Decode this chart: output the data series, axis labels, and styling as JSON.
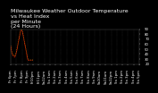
{
  "title": "Milwaukee Weather Outdoor Temperature\nvs Heat Index\nper Minute\n(24 Hours)",
  "title_fontsize": 4.5,
  "title_color": "#ffffff",
  "bg_color": "#000000",
  "plot_bg_color": "#000000",
  "grid_color": "#444444",
  "line_color_temp": "#ff0000",
  "line_color_heat": "#ff8800",
  "ylabel_color": "#ffffff",
  "xlabel_color": "#ffffff",
  "tick_color": "#ffffff",
  "tick_fontsize": 2.8,
  "ylim": [
    20,
    90
  ],
  "yticks": [
    20,
    30,
    40,
    50,
    60,
    70,
    80,
    90
  ],
  "num_points": 1440,
  "temp_values": [
    55,
    53,
    51,
    50,
    49,
    48,
    47,
    46,
    45,
    44,
    43,
    43,
    42,
    41,
    41,
    40,
    40,
    39,
    39,
    38,
    38,
    38,
    37,
    37,
    37,
    36,
    36,
    36,
    36,
    35,
    35,
    35,
    35,
    35,
    34,
    34,
    34,
    34,
    34,
    34,
    33,
    33,
    33,
    34,
    34,
    34,
    35,
    35,
    35,
    36,
    36,
    37,
    37,
    38,
    38,
    39,
    39,
    40,
    40,
    41,
    42,
    42,
    43,
    44,
    45,
    46,
    47,
    48,
    49,
    50,
    51,
    52,
    53,
    54,
    55,
    56,
    57,
    58,
    59,
    60,
    61,
    62,
    63,
    64,
    65,
    66,
    67,
    68,
    69,
    70,
    71,
    72,
    73,
    74,
    75,
    76,
    77,
    78,
    79,
    80,
    81,
    82,
    83,
    84,
    85,
    85,
    86,
    86,
    87,
    87,
    87,
    87,
    87,
    87,
    87,
    87,
    87,
    87,
    87,
    87,
    86,
    86,
    85,
    85,
    84,
    84,
    83,
    83,
    82,
    81,
    80,
    79,
    78,
    77,
    76,
    75,
    74,
    73,
    72,
    71,
    70,
    69,
    68,
    67,
    66,
    65,
    64,
    63,
    62,
    61,
    60,
    59,
    58,
    57,
    56,
    55,
    54,
    53,
    52,
    51,
    50,
    49,
    48,
    47,
    46,
    45,
    44,
    43,
    42,
    41,
    40,
    39,
    38,
    37,
    36,
    35,
    34,
    33,
    32,
    31,
    30,
    29,
    28,
    27,
    27,
    27,
    27,
    27,
    27,
    27,
    27,
    27,
    27,
    27,
    27,
    27,
    27,
    27,
    27,
    27,
    27,
    27,
    27,
    27,
    27,
    27,
    27,
    27,
    27,
    27,
    27,
    27,
    27,
    27,
    27,
    27,
    27,
    27,
    27,
    27,
    27,
    27,
    27,
    27,
    27,
    27,
    27,
    27,
    27,
    27,
    27,
    27,
    27,
    27,
    27,
    27,
    27,
    27,
    27,
    27
  ],
  "heat_values": [
    57,
    55,
    53,
    52,
    51,
    50,
    49,
    48,
    47,
    46,
    45,
    45,
    44,
    43,
    43,
    42,
    42,
    41,
    41,
    40,
    40,
    40,
    39,
    39,
    39,
    38,
    38,
    38,
    38,
    37,
    37,
    37,
    37,
    37,
    36,
    36,
    36,
    36,
    36,
    36,
    35,
    35,
    35,
    36,
    36,
    36,
    37,
    37,
    37,
    38,
    38,
    39,
    39,
    40,
    40,
    41,
    41,
    42,
    42,
    43,
    44,
    44,
    45,
    46,
    47,
    48,
    49,
    50,
    51,
    52,
    53,
    54,
    55,
    56,
    57,
    58,
    59,
    60,
    61,
    62,
    63,
    64,
    65,
    66,
    67,
    68,
    69,
    70,
    71,
    72,
    73,
    74,
    75,
    76,
    77,
    78,
    79,
    80,
    81,
    82,
    83,
    84,
    85,
    86,
    87,
    87,
    88,
    88,
    89,
    89,
    89,
    89,
    89,
    89,
    89,
    89,
    89,
    89,
    89,
    89,
    88,
    88,
    87,
    87,
    86,
    86,
    85,
    85,
    84,
    83,
    82,
    81,
    80,
    79,
    78,
    77,
    76,
    75,
    74,
    73,
    72,
    71,
    70,
    69,
    68,
    67,
    66,
    65,
    64,
    63,
    62,
    61,
    60,
    59,
    58,
    57,
    56,
    55,
    54,
    53,
    52,
    51,
    50,
    49,
    48,
    47,
    46,
    45,
    44,
    43,
    42,
    41,
    40,
    39,
    38,
    37,
    36,
    35,
    34,
    33,
    32,
    31,
    30,
    29,
    28,
    28,
    28,
    28,
    28,
    28,
    28,
    28,
    28,
    28,
    28,
    28,
    28,
    28,
    28,
    28,
    28,
    28,
    28,
    28,
    28,
    28,
    28,
    28,
    28,
    28,
    28,
    28,
    28,
    28,
    28,
    28,
    28,
    28,
    28,
    28,
    28,
    28,
    28,
    28,
    28,
    28,
    28,
    28,
    28,
    28,
    28,
    28,
    28,
    28,
    28,
    28,
    28,
    28,
    28,
    28
  ],
  "xtick_labels": [
    "Fr 6pm",
    "Fr 7pm",
    "Fr 8pm",
    "Fr 9pm",
    "Fr10pm",
    "Fr11pm",
    "Sa12am",
    "Sa 1am",
    "Sa 2am",
    "Sa 3am",
    "Sa 4am",
    "Sa 5am",
    "Sa 6am",
    "Sa 7am",
    "Sa 8am",
    "Sa 9am",
    "Sa10am",
    "Sa11am",
    "Sa12pm",
    "Sa 1pm",
    "Sa 2pm",
    "Sa 3pm",
    "Sa 4pm",
    "Sa 5pm"
  ],
  "vgrid_positions": [
    0,
    60,
    120,
    180,
    240,
    300,
    360,
    420,
    480,
    540,
    600,
    660,
    720,
    780,
    840,
    900,
    960,
    1020,
    1080,
    1140,
    1200,
    1260,
    1320,
    1380
  ]
}
